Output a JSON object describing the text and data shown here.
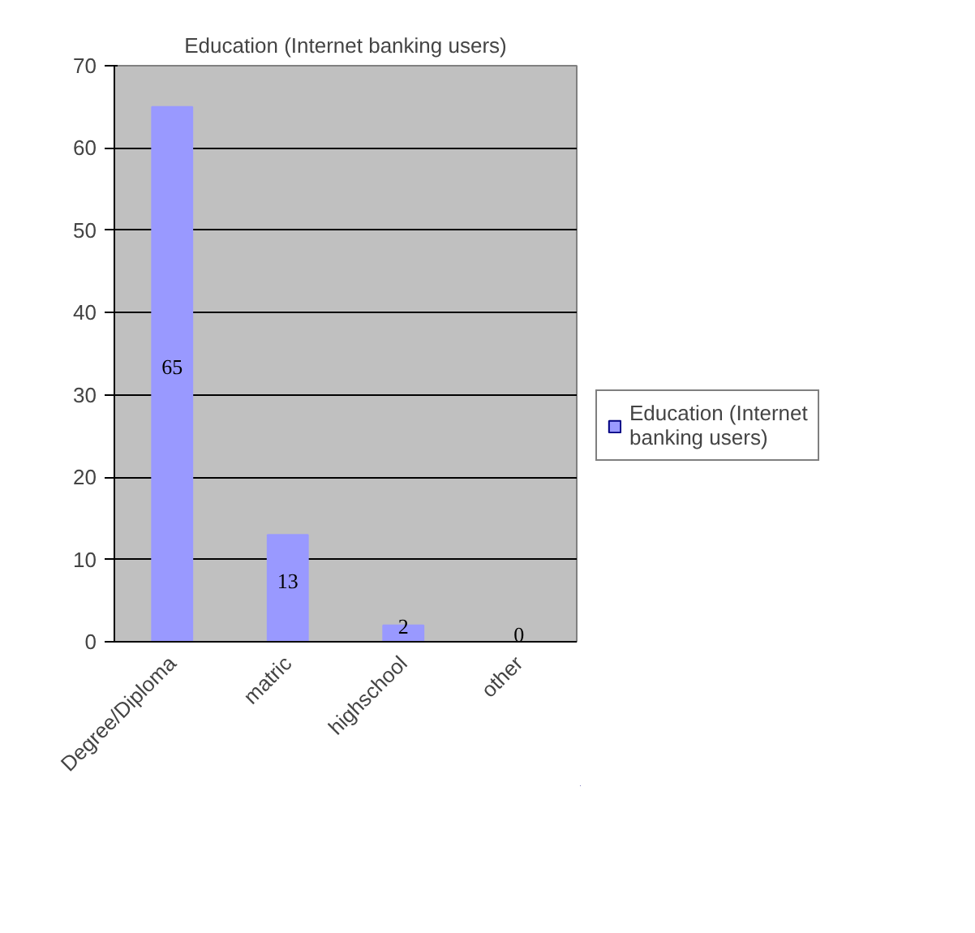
{
  "chart_data": {
    "type": "bar",
    "title": "Education (Internet banking users)",
    "categories": [
      "Degree/Diploma",
      "matric",
      "highschool",
      "other"
    ],
    "series": [
      {
        "name": "Education (Internet banking users)",
        "color": "#9999ff",
        "values": [
          65,
          13,
          2,
          0
        ]
      }
    ],
    "ylim": [
      0,
      70
    ],
    "yticks": [
      0,
      10,
      20,
      30,
      40,
      50,
      60,
      70
    ],
    "grid": "y",
    "legend": "right",
    "data_labels": true
  }
}
